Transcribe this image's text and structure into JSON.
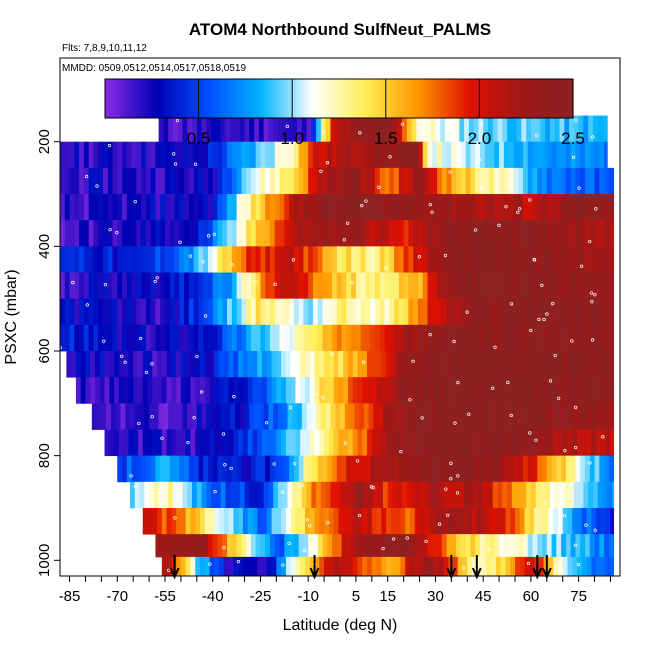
{
  "chart_data": {
    "type": "heatmap",
    "title": "ATOM4 Northbound SulfNeut_PALMS",
    "flights_note": "Flts: 7,8,9,10,11,12",
    "dates_note": "MMDD: 0509,0512,0514,0517,0518,0519",
    "xlabel": "Latitude (deg N)",
    "ylabel": "PSXC (mbar)",
    "xlim": [
      -88,
      88
    ],
    "ylim": [
      1030,
      40
    ],
    "x_ticks": [
      -85,
      -70,
      -55,
      -40,
      -25,
      -10,
      5,
      15,
      30,
      45,
      60,
      75
    ],
    "x_tick_labels": [
      "-85",
      "-70",
      "-55",
      "-40",
      "-25",
      "-10",
      "5",
      "15",
      "30",
      "45",
      "60",
      "75"
    ],
    "x_minor_step": 5,
    "y_ticks": [
      200,
      400,
      600,
      800,
      1000
    ],
    "y_tick_labels": [
      "200",
      "400",
      "600",
      "800",
      "1000"
    ],
    "colorbar": {
      "min": 0,
      "max": 2.5,
      "ticks": [
        0.5,
        1.0,
        1.5,
        2.0,
        2.5
      ],
      "tick_labels": [
        "0.5",
        "1.0",
        "1.5",
        "2.0",
        "2.5"
      ],
      "colors": [
        "#8a2be2",
        "#0000b4",
        "#0050ff",
        "#00b4ff",
        "#ffffff",
        "#ffee55",
        "#ff9900",
        "#e01000",
        "#a01818",
        "#8b2222"
      ]
    },
    "levels": [
      {
        "p": 175,
        "lat_min": -57,
        "lat_max": 84,
        "segments": [
          [
            -57,
            0.15
          ],
          [
            -30,
            0.2
          ],
          [
            -10,
            0.15
          ],
          [
            -2,
            2.0
          ],
          [
            5,
            2.3
          ],
          [
            15,
            2.5
          ],
          [
            25,
            1.2
          ],
          [
            40,
            1.0
          ],
          [
            60,
            0.9
          ],
          [
            84,
            0.8
          ]
        ]
      },
      {
        "p": 225,
        "lat_min": -88,
        "lat_max": 84,
        "segments": [
          [
            -88,
            0.2
          ],
          [
            -45,
            0.25
          ],
          [
            -28,
            0.8
          ],
          [
            -15,
            1.3
          ],
          [
            -8,
            2.0
          ],
          [
            10,
            2.3
          ],
          [
            24,
            2.4
          ],
          [
            28,
            1.2
          ],
          [
            40,
            1.0
          ],
          [
            55,
            0.9
          ],
          [
            70,
            0.7
          ],
          [
            84,
            0.7
          ]
        ]
      },
      {
        "p": 275,
        "lat_min": -88,
        "lat_max": 86,
        "segments": [
          [
            -88,
            0.2
          ],
          [
            -40,
            0.25
          ],
          [
            -30,
            1.0
          ],
          [
            -15,
            1.4
          ],
          [
            -5,
            2.2
          ],
          [
            5,
            2.4
          ],
          [
            15,
            1.7
          ],
          [
            25,
            2.3
          ],
          [
            35,
            1.6
          ],
          [
            50,
            1.2
          ],
          [
            65,
            0.7
          ],
          [
            86,
            0.5
          ]
        ]
      },
      {
        "p": 325,
        "lat_min": -88,
        "lat_max": 86,
        "segments": [
          [
            -88,
            0.15
          ],
          [
            -40,
            0.3
          ],
          [
            -30,
            1.2
          ],
          [
            -20,
            1.8
          ],
          [
            -10,
            2.3
          ],
          [
            5,
            2.5
          ],
          [
            15,
            2.4
          ],
          [
            30,
            2.3
          ],
          [
            45,
            2.2
          ],
          [
            60,
            2.1
          ],
          [
            75,
            2.4
          ],
          [
            86,
            2.3
          ]
        ]
      },
      {
        "p": 375,
        "lat_min": -88,
        "lat_max": 86,
        "segments": [
          [
            -88,
            0.15
          ],
          [
            -45,
            0.3
          ],
          [
            -35,
            0.9
          ],
          [
            -25,
            1.6
          ],
          [
            -12,
            2.2
          ],
          [
            5,
            2.3
          ],
          [
            20,
            1.9
          ],
          [
            30,
            2.3
          ],
          [
            45,
            2.5
          ],
          [
            60,
            2.4
          ],
          [
            86,
            2.2
          ]
        ]
      },
      {
        "p": 425,
        "lat_min": -88,
        "lat_max": 86,
        "segments": [
          [
            -88,
            0.5
          ],
          [
            -65,
            0.3
          ],
          [
            -45,
            0.8
          ],
          [
            -30,
            1.8
          ],
          [
            -15,
            2.1
          ],
          [
            -3,
            1.5
          ],
          [
            10,
            1.3
          ],
          [
            25,
            2.0
          ],
          [
            35,
            2.4
          ],
          [
            50,
            2.5
          ],
          [
            70,
            2.3
          ],
          [
            86,
            2.2
          ]
        ]
      },
      {
        "p": 475,
        "lat_min": -88,
        "lat_max": 86,
        "segments": [
          [
            -88,
            0.2
          ],
          [
            -50,
            0.35
          ],
          [
            -35,
            0.7
          ],
          [
            -25,
            1.6
          ],
          [
            -15,
            2.2
          ],
          [
            -5,
            1.6
          ],
          [
            10,
            1.3
          ],
          [
            25,
            1.6
          ],
          [
            35,
            2.4
          ],
          [
            50,
            2.5
          ],
          [
            70,
            2.4
          ],
          [
            86,
            2.3
          ]
        ]
      },
      {
        "p": 525,
        "lat_min": -88,
        "lat_max": 86,
        "segments": [
          [
            -88,
            0.3
          ],
          [
            -55,
            0.2
          ],
          [
            -40,
            0.6
          ],
          [
            -25,
            1.4
          ],
          [
            -10,
            1.0
          ],
          [
            0,
            1.3
          ],
          [
            15,
            1.2
          ],
          [
            30,
            2.0
          ],
          [
            45,
            2.4
          ],
          [
            60,
            2.5
          ],
          [
            86,
            2.4
          ]
        ]
      },
      {
        "p": 575,
        "lat_min": -88,
        "lat_max": 86,
        "segments": [
          [
            -88,
            0.4
          ],
          [
            -60,
            0.2
          ],
          [
            -40,
            0.4
          ],
          [
            -25,
            0.9
          ],
          [
            -10,
            1.3
          ],
          [
            5,
            1.8
          ],
          [
            20,
            2.2
          ],
          [
            35,
            2.5
          ],
          [
            50,
            2.4
          ],
          [
            70,
            2.4
          ],
          [
            86,
            2.3
          ]
        ]
      },
      {
        "p": 625,
        "lat_min": -86,
        "lat_max": 86,
        "segments": [
          [
            -86,
            0.3
          ],
          [
            -60,
            0.2
          ],
          [
            -40,
            0.35
          ],
          [
            -25,
            0.8
          ],
          [
            -10,
            1.2
          ],
          [
            5,
            1.6
          ],
          [
            20,
            2.3
          ],
          [
            35,
            2.5
          ],
          [
            55,
            2.5
          ],
          [
            86,
            2.4
          ]
        ]
      },
      {
        "p": 675,
        "lat_min": -83,
        "lat_max": 86,
        "segments": [
          [
            -83,
            0.2
          ],
          [
            -55,
            0.15
          ],
          [
            -35,
            0.3
          ],
          [
            -20,
            0.7
          ],
          [
            -5,
            1.4
          ],
          [
            8,
            1.9
          ],
          [
            20,
            2.4
          ],
          [
            40,
            2.5
          ],
          [
            60,
            2.5
          ],
          [
            86,
            2.4
          ]
        ]
      },
      {
        "p": 725,
        "lat_min": -78,
        "lat_max": 86,
        "segments": [
          [
            -78,
            0.15
          ],
          [
            -50,
            0.15
          ],
          [
            -30,
            0.35
          ],
          [
            -15,
            0.8
          ],
          [
            0,
            1.5
          ],
          [
            15,
            2.2
          ],
          [
            30,
            2.5
          ],
          [
            55,
            2.5
          ],
          [
            70,
            2.4
          ],
          [
            86,
            2.3
          ]
        ]
      },
      {
        "p": 775,
        "lat_min": -74,
        "lat_max": 86,
        "segments": [
          [
            -74,
            0.2
          ],
          [
            -45,
            0.2
          ],
          [
            -25,
            0.5
          ],
          [
            -10,
            1.1
          ],
          [
            5,
            1.7
          ],
          [
            18,
            2.3
          ],
          [
            35,
            2.5
          ],
          [
            55,
            2.4
          ],
          [
            72,
            2.2
          ],
          [
            86,
            2.1
          ]
        ]
      },
      {
        "p": 825,
        "lat_min": -70,
        "lat_max": 86,
        "segments": [
          [
            -70,
            0.5
          ],
          [
            -55,
            0.8
          ],
          [
            -40,
            0.3
          ],
          [
            -20,
            0.4
          ],
          [
            -10,
            1.3
          ],
          [
            0,
            1.9
          ],
          [
            15,
            2.2
          ],
          [
            30,
            2.4
          ],
          [
            50,
            2.3
          ],
          [
            68,
            1.6
          ],
          [
            80,
            0.9
          ],
          [
            86,
            0.6
          ]
        ]
      },
      {
        "p": 875,
        "lat_min": -66,
        "lat_max": 86,
        "segments": [
          [
            -66,
            1.0
          ],
          [
            -55,
            1.3
          ],
          [
            -40,
            0.6
          ],
          [
            -25,
            0.4
          ],
          [
            -10,
            1.6
          ],
          [
            5,
            2.3
          ],
          [
            15,
            1.9
          ],
          [
            30,
            2.2
          ],
          [
            45,
            2.1
          ],
          [
            60,
            1.4
          ],
          [
            75,
            1.0
          ],
          [
            86,
            0.7
          ]
        ]
      },
      {
        "p": 925,
        "lat_min": -62,
        "lat_max": 86,
        "segments": [
          [
            -62,
            2.0
          ],
          [
            -50,
            1.7
          ],
          [
            -40,
            1.2
          ],
          [
            -25,
            0.6
          ],
          [
            -10,
            1.5
          ],
          [
            5,
            2.1
          ],
          [
            20,
            1.8
          ],
          [
            35,
            2.3
          ],
          [
            50,
            2.0
          ],
          [
            65,
            1.2
          ],
          [
            78,
            0.6
          ],
          [
            86,
            0.3
          ]
        ]
      },
      {
        "p": 975,
        "lat_min": -58,
        "lat_max": 86,
        "segments": [
          [
            -58,
            2.2
          ],
          [
            -45,
            2.4
          ],
          [
            -35,
            1.6
          ],
          [
            -20,
            0.5
          ],
          [
            -8,
            1.2
          ],
          [
            5,
            2.3
          ],
          [
            20,
            2.4
          ],
          [
            35,
            1.6
          ],
          [
            50,
            1.2
          ],
          [
            65,
            1.0
          ],
          [
            78,
            0.8
          ],
          [
            86,
            0.6
          ]
        ]
      },
      {
        "p": 1012,
        "lat_min": -56,
        "lat_max": 86,
        "segments": [
          [
            -56,
            2.3
          ],
          [
            -45,
            1.0
          ],
          [
            -35,
            0.2
          ],
          [
            -22,
            0.3
          ],
          [
            -12,
            1.4
          ],
          [
            0,
            2.2
          ],
          [
            15,
            1.5
          ],
          [
            28,
            2.4
          ],
          [
            45,
            1.1
          ],
          [
            60,
            2.1
          ],
          [
            72,
            0.9
          ],
          [
            86,
            0.5
          ]
        ]
      }
    ],
    "arrows_lat": [
      -52,
      -8,
      35,
      43,
      62,
      65
    ]
  }
}
